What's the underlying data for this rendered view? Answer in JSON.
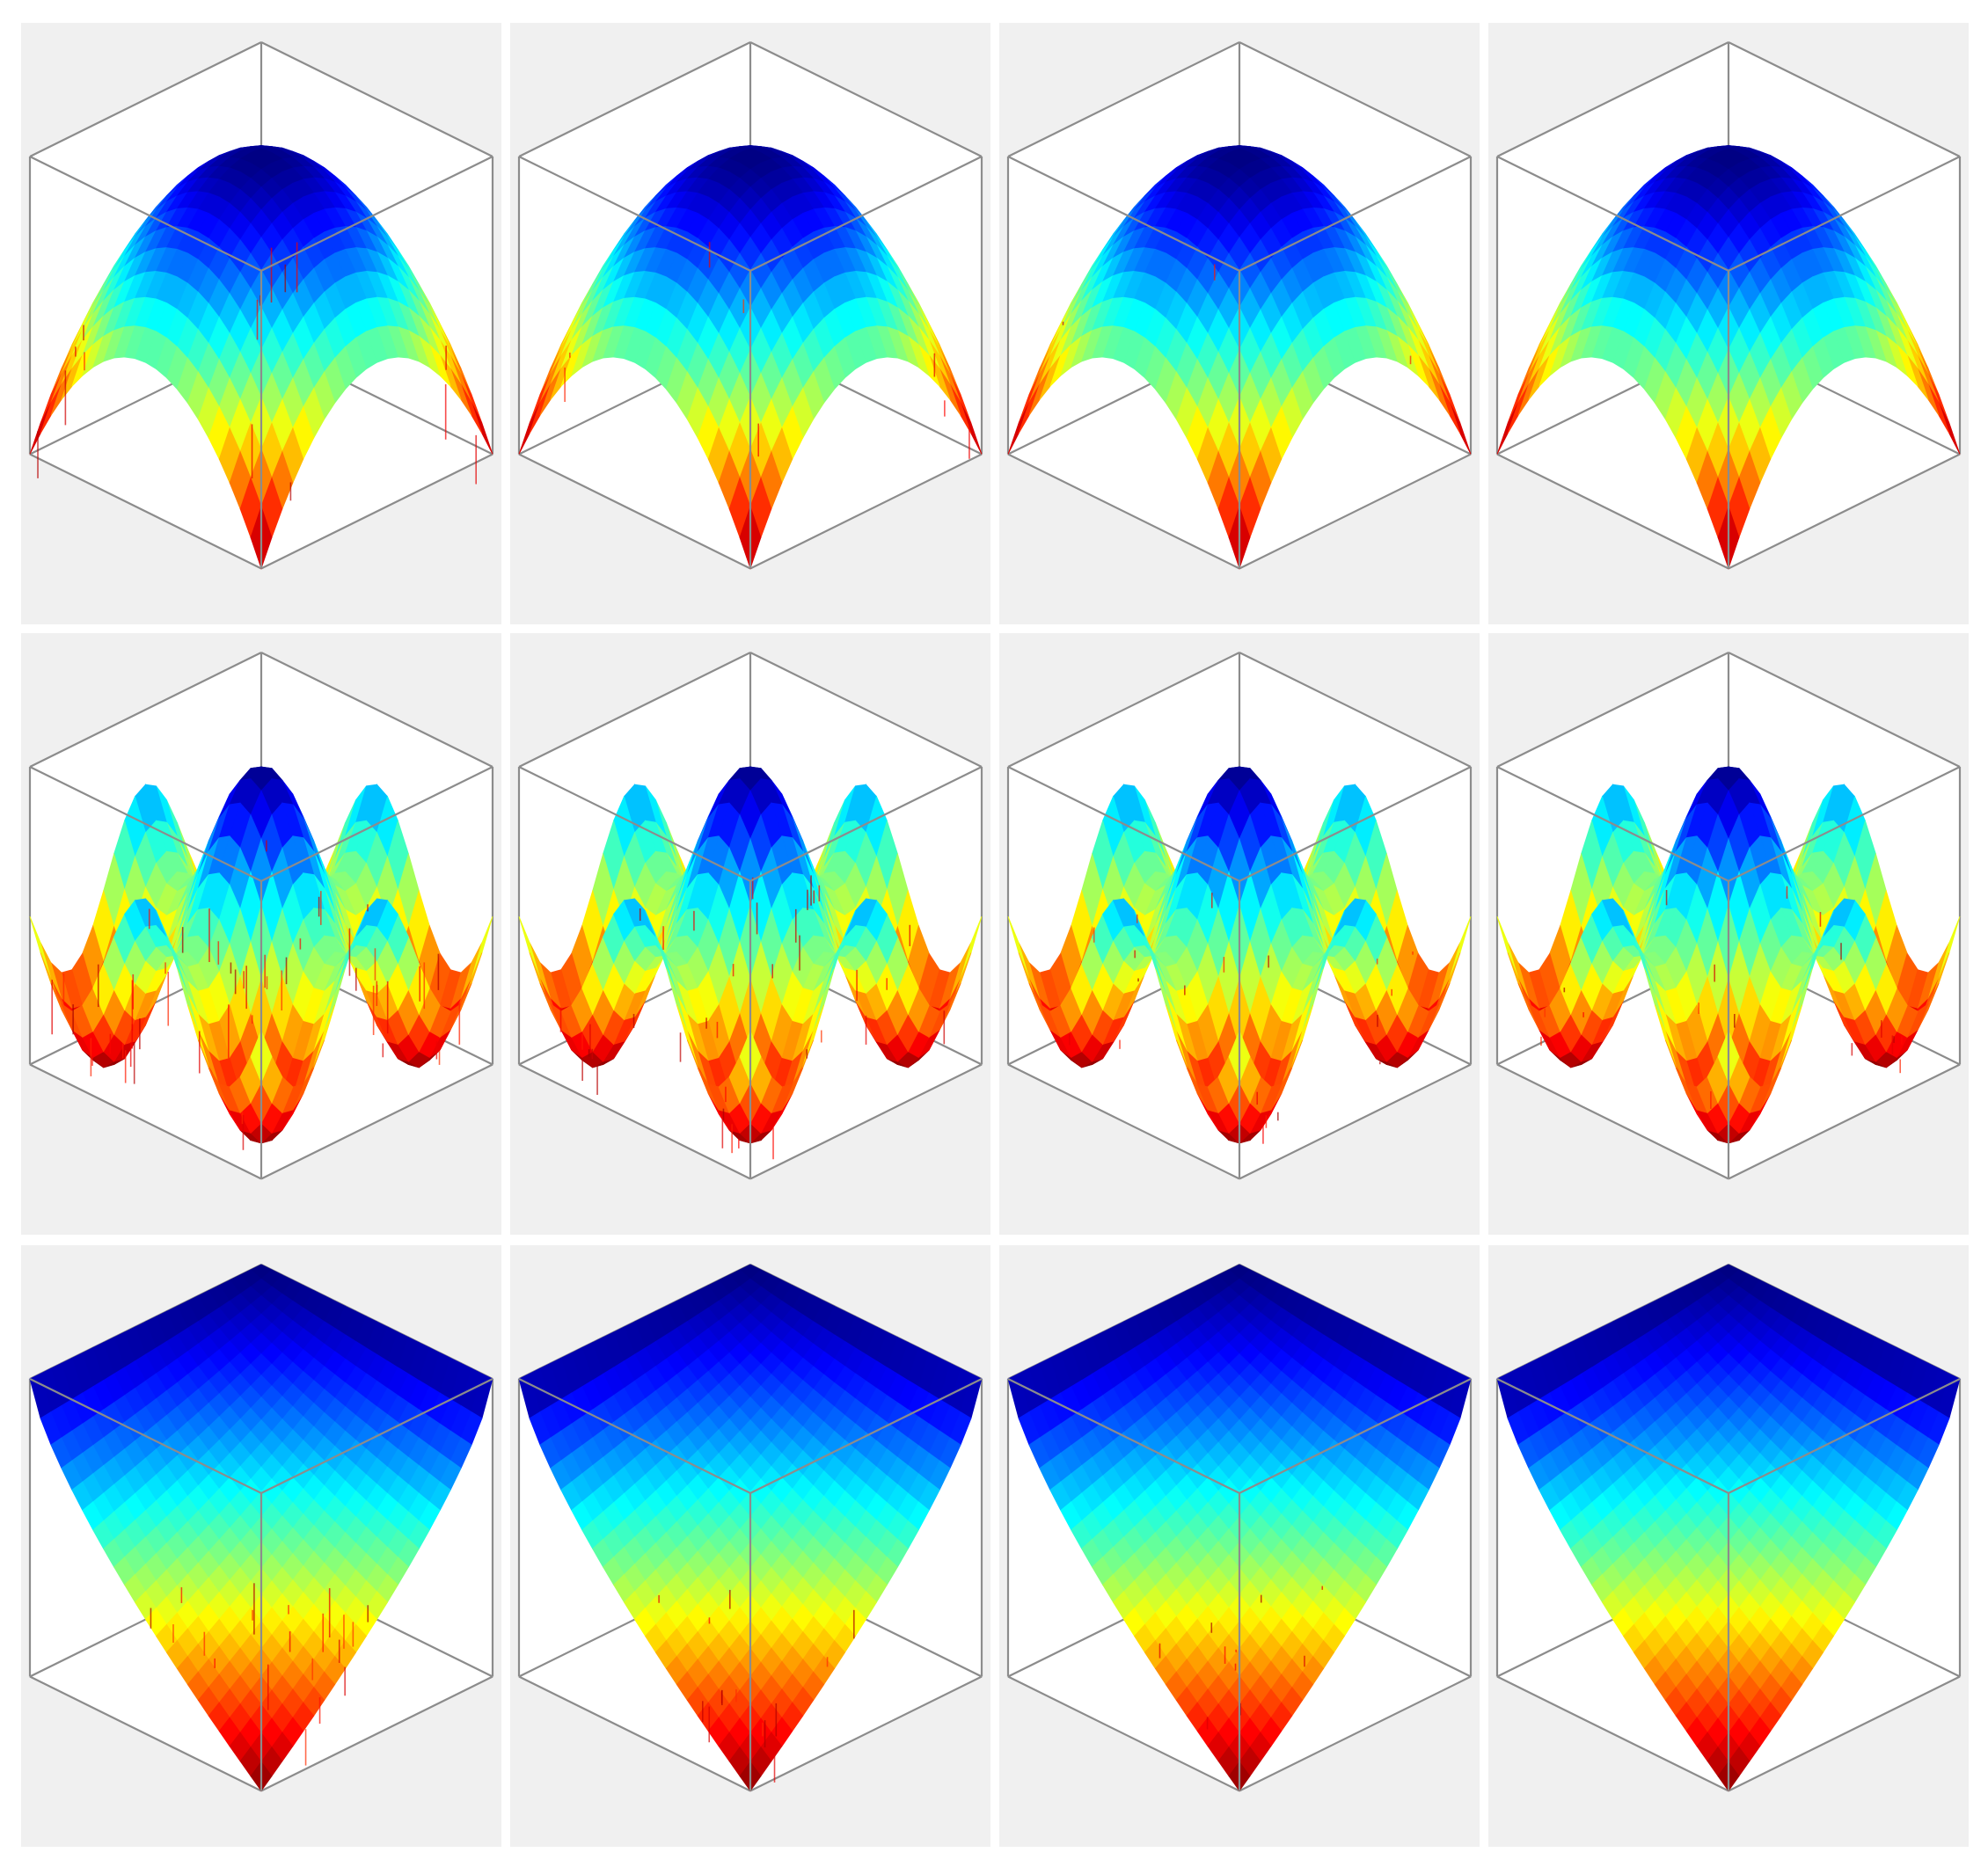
{
  "figure": {
    "background": "#ffffff",
    "panel_background": "#f0f0f0",
    "axes_box_color": "#8c8c8c",
    "colormap": "jet",
    "rows": 3,
    "columns": 4
  },
  "chart_data": [
    {
      "type": "surface",
      "row": 1,
      "column": 1,
      "surface": "dome",
      "noise": "heavy",
      "title": "",
      "xlabel": "",
      "ylabel": "",
      "zlabel": "",
      "ticks": "none"
    },
    {
      "type": "surface",
      "row": 1,
      "column": 2,
      "surface": "dome",
      "noise": "medium",
      "title": "",
      "xlabel": "",
      "ylabel": "",
      "zlabel": "",
      "ticks": "none"
    },
    {
      "type": "surface",
      "row": 1,
      "column": 3,
      "surface": "dome",
      "noise": "light",
      "title": "",
      "xlabel": "",
      "ylabel": "",
      "zlabel": "",
      "ticks": "none"
    },
    {
      "type": "surface",
      "row": 1,
      "column": 4,
      "surface": "dome",
      "noise": "none",
      "title": "",
      "xlabel": "",
      "ylabel": "",
      "zlabel": "",
      "ticks": "none"
    },
    {
      "type": "surface",
      "row": 2,
      "column": 1,
      "surface": "multimodal",
      "noise": "heavy",
      "title": "",
      "xlabel": "",
      "ylabel": "",
      "zlabel": "",
      "ticks": "none"
    },
    {
      "type": "surface",
      "row": 2,
      "column": 2,
      "surface": "multimodal",
      "noise": "medium",
      "title": "",
      "xlabel": "",
      "ylabel": "",
      "zlabel": "",
      "ticks": "none"
    },
    {
      "type": "surface",
      "row": 2,
      "column": 3,
      "surface": "multimodal",
      "noise": "light",
      "title": "",
      "xlabel": "",
      "ylabel": "",
      "zlabel": "",
      "ticks": "none"
    },
    {
      "type": "surface",
      "row": 2,
      "column": 4,
      "surface": "multimodal",
      "noise": "light",
      "title": "",
      "xlabel": "",
      "ylabel": "",
      "zlabel": "",
      "ticks": "none"
    },
    {
      "type": "surface",
      "row": 3,
      "column": 1,
      "surface": "ramp",
      "noise": "heavy",
      "title": "",
      "xlabel": "",
      "ylabel": "",
      "zlabel": "",
      "ticks": "none"
    },
    {
      "type": "surface",
      "row": 3,
      "column": 2,
      "surface": "ramp",
      "noise": "medium",
      "title": "",
      "xlabel": "",
      "ylabel": "",
      "zlabel": "",
      "ticks": "none"
    },
    {
      "type": "surface",
      "row": 3,
      "column": 3,
      "surface": "ramp",
      "noise": "light",
      "title": "",
      "xlabel": "",
      "ylabel": "",
      "zlabel": "",
      "ticks": "none"
    },
    {
      "type": "surface",
      "row": 3,
      "column": 4,
      "surface": "ramp",
      "noise": "none",
      "title": "",
      "xlabel": "",
      "ylabel": "",
      "zlabel": "",
      "ticks": "none"
    }
  ]
}
